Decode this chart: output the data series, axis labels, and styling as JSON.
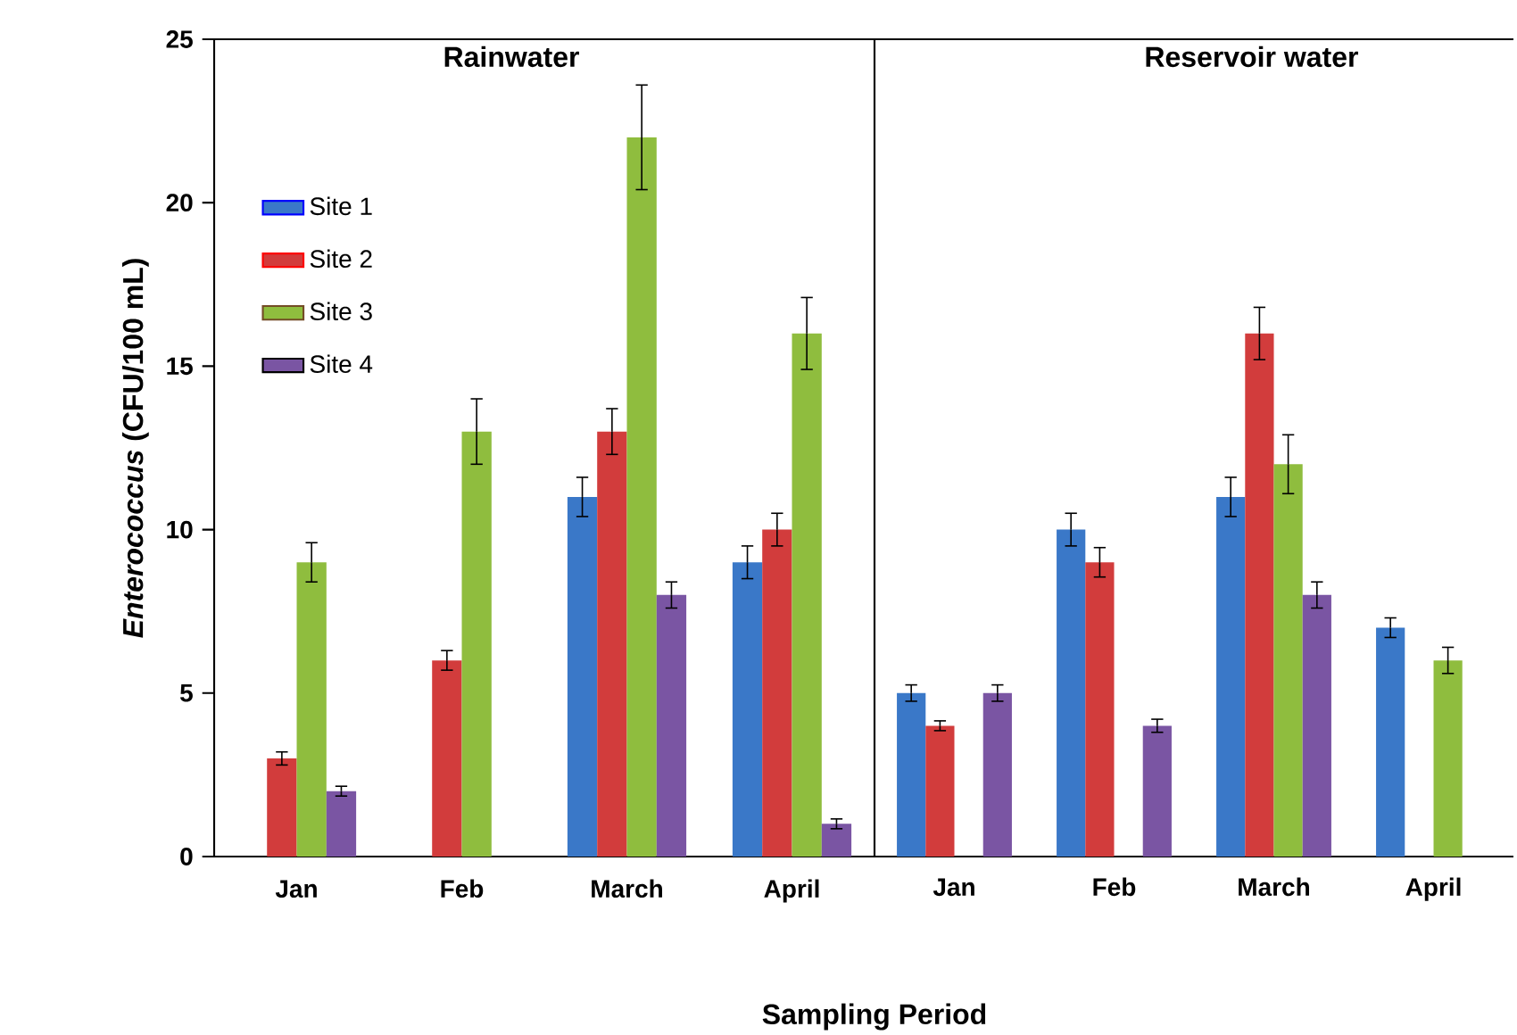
{
  "chart_data": [
    {
      "type": "bar",
      "title": "Rainwater",
      "ylabel": "*Enterococcus* (CFU/100 mL)",
      "xlabel": "Sampling Period",
      "categories": [
        "Jan",
        "Feb",
        "March",
        "April"
      ],
      "series": [
        {
          "name": "Site 1",
          "color": "#3a78c8",
          "values": [
            null,
            null,
            11,
            9
          ],
          "errors": [
            null,
            null,
            0.6,
            0.5
          ]
        },
        {
          "name": "Site 2",
          "color": "#d23c3c",
          "values": [
            3,
            6,
            13,
            10
          ],
          "errors": [
            0.2,
            0.3,
            0.7,
            0.5
          ]
        },
        {
          "name": "Site 3",
          "color": "#8fbd3e",
          "values": [
            9,
            13,
            22,
            16
          ],
          "errors": [
            0.6,
            1.0,
            1.6,
            1.1
          ]
        },
        {
          "name": "Site 4",
          "color": "#7a55a3",
          "values": [
            2,
            null,
            8,
            1
          ],
          "errors": [
            0.15,
            null,
            0.4,
            0.15
          ]
        }
      ],
      "ylim": [
        0,
        25
      ],
      "yticks": [
        0,
        5,
        10,
        15,
        20,
        25
      ],
      "legend": "top left"
    },
    {
      "type": "bar",
      "title": "Reservoir water",
      "categories": [
        "Jan",
        "Feb",
        "March",
        "April"
      ],
      "series": [
        {
          "color": "#3a78c8",
          "values": [
            5,
            10,
            11,
            7
          ],
          "errors": [
            0.25,
            0.5,
            0.6,
            0.3
          ]
        },
        {
          "color": "#d23c3c",
          "values": [
            4,
            9,
            16,
            null
          ],
          "errors": [
            0.15,
            0.45,
            0.8,
            null
          ]
        },
        {
          "color": "#8fbd3e",
          "values": [
            null,
            null,
            12,
            6
          ],
          "errors": [
            null,
            null,
            0.9,
            0.4
          ]
        },
        {
          "color": "#7a55a3",
          "values": [
            5,
            4,
            8,
            null
          ],
          "errors": [
            0.25,
            0.2,
            0.4,
            null
          ]
        }
      ],
      "ylim": [
        0,
        25
      ],
      "tick_labels": "x"
    }
  ]
}
